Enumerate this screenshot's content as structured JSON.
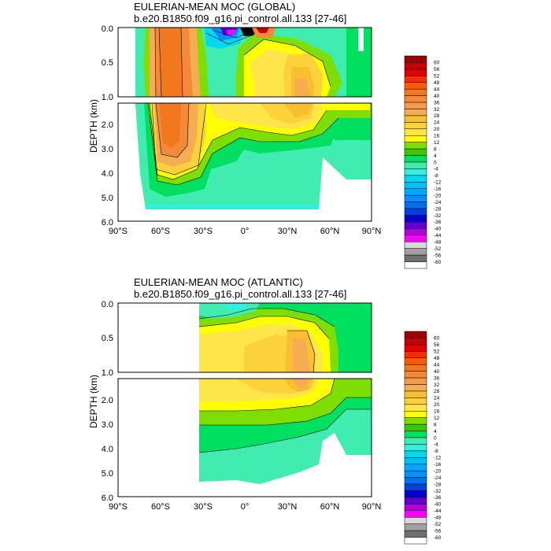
{
  "chart_data": [
    {
      "type": "contour",
      "title": "EULERIAN-MEAN MOC (GLOBAL)",
      "subtitle": "b.e20.B1850.f09_g16.pi_control.all.133 [27-46]",
      "ylabel": "DEPTH (km)",
      "xlabel": "",
      "xlim": [
        -90,
        90
      ],
      "x_ticks": [
        "90°S",
        "60°S",
        "30°S",
        "0°",
        "30°N",
        "60°N",
        "90°N"
      ],
      "upper_panel": {
        "ylim": [
          0.0,
          1.0
        ],
        "y_ticks": [
          "0.0",
          "0.5",
          "1.0"
        ]
      },
      "lower_panel": {
        "ylim": [
          1.0,
          6.0
        ],
        "y_ticks": [
          "2.0",
          "3.0",
          "4.0",
          "5.0",
          "6.0"
        ]
      },
      "data_extent_lat": [
        -80,
        90
      ],
      "features": [
        {
          "lat": -50,
          "depth_km": 0.5,
          "value": 36
        },
        {
          "lat": -50,
          "depth_km": 2.0,
          "value": 28
        },
        {
          "lat": 35,
          "depth_km": 0.5,
          "value": 28
        },
        {
          "lat": 35,
          "depth_km": 1.2,
          "value": 24
        },
        {
          "lat": -12,
          "depth_km": 0.02,
          "value": -44
        },
        {
          "lat": 8,
          "depth_km": 0.02,
          "value": 40
        },
        {
          "lat": -10,
          "depth_km": 5.0,
          "value": -8
        }
      ]
    },
    {
      "type": "contour",
      "title": "EULERIAN-MEAN MOC (ATLANTIC)",
      "subtitle": "b.e20.B1850.f09_g16.pi_control.all.133 [27-46]",
      "ylabel": "DEPTH (km)",
      "xlabel": "",
      "xlim": [
        -90,
        90
      ],
      "x_ticks": [
        "90°S",
        "60°S",
        "30°S",
        "0°",
        "30°N",
        "60°N",
        "90°N"
      ],
      "upper_panel": {
        "ylim": [
          0.0,
          1.0
        ],
        "y_ticks": [
          "0.0",
          "0.5",
          "1.0"
        ]
      },
      "lower_panel": {
        "ylim": [
          1.0,
          6.0
        ],
        "y_ticks": [
          "2.0",
          "3.0",
          "4.0",
          "5.0",
          "6.0"
        ]
      },
      "data_extent_lat": [
        -34,
        90
      ],
      "features": [
        {
          "lat": 35,
          "depth_km": 0.6,
          "value": 24
        },
        {
          "lat": 35,
          "depth_km": 1.5,
          "value": 20
        },
        {
          "lat": 20,
          "depth_km": 1.0,
          "value": 16
        },
        {
          "lat": -10,
          "depth_km": 4.8,
          "value": -4
        }
      ]
    }
  ],
  "colorbar": {
    "labels": [
      "60",
      "56",
      "52",
      "48",
      "44",
      "40",
      "36",
      "32",
      "28",
      "24",
      "20",
      "16",
      "12",
      "8",
      "4",
      "0",
      "-4",
      "-8",
      "-12",
      "-16",
      "-20",
      "-24",
      "-28",
      "-32",
      "-36",
      "-40",
      "-44",
      "-48",
      "-52",
      "-56",
      "-60"
    ],
    "colors": [
      "#a00000",
      "#c40000",
      "#e00000",
      "#ff2a00",
      "#ff5a00",
      "#f2781e",
      "#f48a38",
      "#f49a4a",
      "#f6ad52",
      "#f8c030",
      "#fcd23a",
      "#ffe44a",
      "#ffff00",
      "#7ede00",
      "#3ac800",
      "#00e060",
      "#40ecb0",
      "#30f0e0",
      "#00d8f0",
      "#00c0f8",
      "#00a8ff",
      "#0090ff",
      "#0070f0",
      "#0040e0",
      "#0000d0",
      "#6000d0",
      "#b000e0",
      "#ff00ff",
      "#d8d8d8",
      "#a0a0a0",
      "#707070"
    ]
  }
}
